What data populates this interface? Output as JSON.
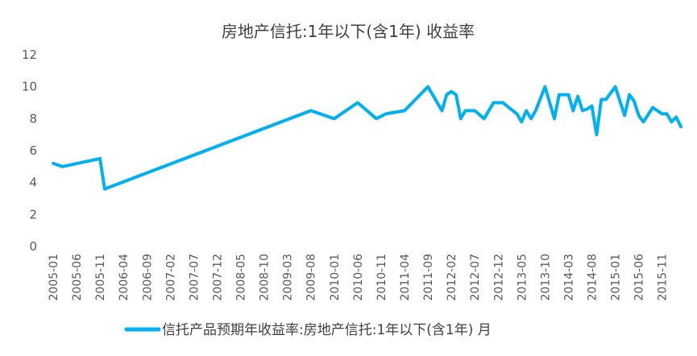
{
  "chart_data": {
    "type": "line",
    "title": "房地产信托:1年以下(含1年) 收益率",
    "xlabel": "",
    "ylabel": "",
    "ylim": [
      0,
      12
    ],
    "yticks": [
      0,
      2,
      4,
      6,
      8,
      10,
      12
    ],
    "xlim": [
      "2005-01",
      "2016-03"
    ],
    "xtick_labels": [
      "2005-01",
      "2005-06",
      "2005-11",
      "2006-04",
      "2006-09",
      "2007-02",
      "2007-07",
      "2007-12",
      "2008-05",
      "2008-10",
      "2009-03",
      "2009-08",
      "2010-01",
      "2010-06",
      "2010-11",
      "2011-04",
      "2011-09",
      "2012-02",
      "2012-07",
      "2012-12",
      "2013-05",
      "2013-10",
      "2014-03",
      "2014-08",
      "2015-01",
      "2015-06",
      "2015-11"
    ],
    "grid": false,
    "legend": "bottom",
    "color": "#00B0F0",
    "series": [
      {
        "name": "信托产品预期年收益率:房地产信托:1年以下(含1年) 月",
        "points": [
          [
            "2005-01",
            5.2
          ],
          [
            "2005-03",
            5.0
          ],
          [
            "2005-11",
            5.5
          ],
          [
            "2005-12",
            3.6
          ],
          [
            "2009-08",
            8.5
          ],
          [
            "2010-01",
            8.0
          ],
          [
            "2010-06",
            9.0
          ],
          [
            "2010-10",
            8.0
          ],
          [
            "2010-12",
            8.3
          ],
          [
            "2011-04",
            8.5
          ],
          [
            "2011-09",
            10.0
          ],
          [
            "2011-12",
            8.5
          ],
          [
            "2012-01",
            9.5
          ],
          [
            "2012-02",
            9.7
          ],
          [
            "2012-03",
            9.5
          ],
          [
            "2012-04",
            8.0
          ],
          [
            "2012-05",
            8.5
          ],
          [
            "2012-07",
            8.5
          ],
          [
            "2012-09",
            8.0
          ],
          [
            "2012-11",
            9.0
          ],
          [
            "2013-01",
            9.0
          ],
          [
            "2013-04",
            8.3
          ],
          [
            "2013-05",
            7.8
          ],
          [
            "2013-06",
            8.5
          ],
          [
            "2013-07",
            8.0
          ],
          [
            "2013-08",
            8.5
          ],
          [
            "2013-10",
            10.0
          ],
          [
            "2013-12",
            8.0
          ],
          [
            "2014-01",
            9.5
          ],
          [
            "2014-03",
            9.5
          ],
          [
            "2014-04",
            8.5
          ],
          [
            "2014-05",
            9.4
          ],
          [
            "2014-06",
            8.5
          ],
          [
            "2014-07",
            8.6
          ],
          [
            "2014-08",
            8.8
          ],
          [
            "2014-09",
            7.0
          ],
          [
            "2014-10",
            9.2
          ],
          [
            "2014-11",
            9.2
          ],
          [
            "2015-01",
            10.0
          ],
          [
            "2015-03",
            8.2
          ],
          [
            "2015-04",
            9.5
          ],
          [
            "2015-05",
            9.1
          ],
          [
            "2015-06",
            8.2
          ],
          [
            "2015-07",
            7.8
          ],
          [
            "2015-09",
            8.7
          ],
          [
            "2015-11",
            8.3
          ],
          [
            "2015-12",
            8.3
          ],
          [
            "2016-01",
            7.8
          ],
          [
            "2016-02",
            8.1
          ],
          [
            "2016-03",
            7.5
          ]
        ]
      }
    ]
  }
}
